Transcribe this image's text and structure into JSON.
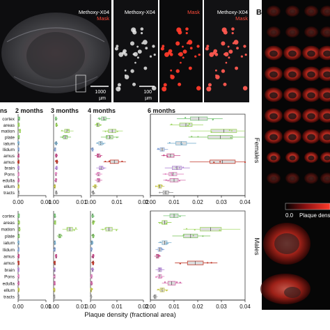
{
  "figure": {
    "panel_b_label": "B",
    "brain_panel": {
      "label": "Methoxy-X04",
      "mask_label": "Mask",
      "scale_value": "1000",
      "scale_unit": "µm"
    },
    "zoom_panels": [
      {
        "label": "Methoxy-X04",
        "mask_label": "",
        "scale_value": "100",
        "scale_unit": "µm"
      },
      {
        "label": "",
        "mask_label": "Mask",
        "scale_value": "",
        "scale_unit": ""
      },
      {
        "label": "Methoxy-X04",
        "mask_label": "Mask",
        "scale_value": "",
        "scale_unit": ""
      }
    ],
    "colorbar": {
      "min_label": "0.0",
      "title": "Plaque dens"
    },
    "group_labels": {
      "females": "Females",
      "males": "Males"
    },
    "xlabel": "Plaque density (fractional area)"
  },
  "chart_data": {
    "type": "box",
    "region_labels": [
      "cortex",
      "areas",
      "mation",
      "plate",
      "iatum",
      "llidum",
      "amus",
      "amus",
      "brain",
      "Pons",
      "edulla",
      "ellum",
      "tracts"
    ],
    "cut_header": "ns",
    "region_colors": [
      "#7fc97f",
      "#9ad35a",
      "#a6d96a",
      "#86c86a",
      "#7fb2d0",
      "#8aa7d8",
      "#c94b8a",
      "#c0392b",
      "#b58ad8",
      "#e389c2",
      "#d26aa8",
      "#c8c84a",
      "#9e9e9e"
    ],
    "timepoints": [
      {
        "label": "2 months",
        "xlim": [
          0,
          0.01
        ],
        "tick_labels": [
          "0.00",
          "0.01"
        ]
      },
      {
        "label": "3 months",
        "xlim": [
          0,
          0.01
        ],
        "tick_labels": [
          "0.00",
          "0.01"
        ]
      },
      {
        "label": "4 months",
        "xlim": [
          0,
          0.02
        ],
        "tick_labels": [
          "0.00",
          "0.01",
          "0.02"
        ]
      },
      {
        "label": "6 months",
        "xlim": [
          0,
          0.04
        ],
        "tick_labels": [
          "0.00",
          "0.01",
          "0.02",
          "0.03",
          "0.04"
        ]
      }
    ],
    "groups": [
      {
        "name": "Females",
        "medians": [
          [
            0.0003,
            0.0002,
            0.0006,
            0.0002,
            0.0001,
            0.0001,
            0.0001,
            0.0001,
            0.0001,
            0.0001,
            0.0001,
            0.0001,
            0.0001
          ],
          [
            0.0008,
            0.001,
            0.0048,
            0.0042,
            0.0009,
            0.0005,
            0.0009,
            0.0012,
            0.0011,
            0.0008,
            0.0008,
            0.0004,
            0.0009
          ],
          [
            0.005,
            0.0028,
            0.0082,
            0.0072,
            0.0038,
            0.0008,
            0.003,
            0.009,
            0.004,
            0.003,
            0.003,
            0.0018,
            0.001
          ],
          [
            0.0205,
            0.015,
            0.031,
            0.0295,
            0.013,
            0.005,
            0.0085,
            0.0305,
            0.0112,
            0.0095,
            0.01,
            0.004,
            0.0065
          ]
        ]
      },
      {
        "name": "Males",
        "medians": [
          [
            0.0002,
            0.0002,
            0.0004,
            0.0002,
            0.0001,
            0.0001,
            0.0001,
            0.0001,
            0.0001,
            0.0001,
            0.0001,
            0.0001,
            0.0001
          ],
          [
            0.0004,
            0.0005,
            0.0058,
            0.0022,
            0.0004,
            0.0003,
            0.0009,
            0.0004,
            0.0003,
            0.0003,
            0.0003,
            0.0002,
            0.0002
          ],
          [
            0.0008,
            0.001,
            0.007,
            0.001,
            0.0005,
            0.0003,
            0.001,
            0.001,
            0.0008,
            0.0004,
            0.0004,
            0.0002,
            0.0002
          ],
          [
            0.01,
            0.006,
            0.0255,
            0.017,
            0.006,
            0.004,
            0.003,
            0.019,
            0.004,
            0.004,
            0.009,
            0.005,
            0.002
          ]
        ]
      }
    ]
  }
}
